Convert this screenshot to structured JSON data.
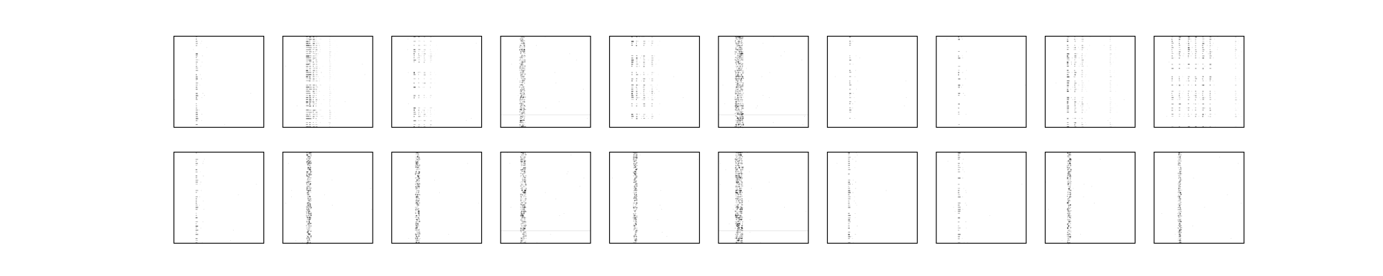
{
  "figure": {
    "background": "#ffffff",
    "grid_rows": 2,
    "grid_cols": 10,
    "frame_color": "#000000",
    "ink_color": "#000000"
  },
  "chart_data": {
    "type": "heatmap",
    "description_of_layout": "",
    "rows": 2,
    "cols": 10,
    "axes_ticks": false,
    "title": "",
    "colormap": "gray_r",
    "panels": [
      {
        "row": 0,
        "col": 0,
        "style": "columns",
        "columns": [
          {
            "pos": 0.25,
            "w": 0.012,
            "int": 0.55
          }
        ],
        "rowDensity": 0.7,
        "noise": 0.02,
        "seed": 11
      },
      {
        "row": 0,
        "col": 1,
        "style": "columns",
        "columns": [
          {
            "pos": 0.27,
            "w": 0.02,
            "int": 0.7
          },
          {
            "pos": 0.3,
            "w": 0.014,
            "int": 0.6
          },
          {
            "pos": 0.34,
            "w": 0.01,
            "int": 0.45
          },
          {
            "pos": 0.37,
            "w": 0.006,
            "int": 0.3
          },
          {
            "pos": 0.52,
            "w": 0.004,
            "int": 0.12
          }
        ],
        "rowDensity": 0.9,
        "noise": 0.03,
        "seed": 12
      },
      {
        "row": 0,
        "col": 2,
        "style": "columns",
        "columns": [
          {
            "pos": 0.25,
            "w": 0.012,
            "int": 0.6
          },
          {
            "pos": 0.3,
            "w": 0.008,
            "int": 0.35
          },
          {
            "pos": 0.36,
            "w": 0.005,
            "int": 0.25
          },
          {
            "pos": 0.43,
            "w": 0.004,
            "int": 0.15
          }
        ],
        "rowDensity": 0.55,
        "noise": 0.02,
        "seed": 13
      },
      {
        "row": 0,
        "col": 3,
        "style": "band",
        "columns": [
          {
            "pos": 0.22,
            "w": 0.06,
            "int": 0.75
          }
        ],
        "rowDensity": 0.2,
        "noise": 0.06,
        "seed": 14
      },
      {
        "row": 0,
        "col": 4,
        "style": "columns",
        "columns": [
          {
            "pos": 0.25,
            "w": 0.012,
            "int": 0.65
          },
          {
            "pos": 0.3,
            "w": 0.008,
            "int": 0.5
          },
          {
            "pos": 0.38,
            "w": 0.006,
            "int": 0.4
          },
          {
            "pos": 0.47,
            "w": 0.005,
            "int": 0.3
          }
        ],
        "rowDensity": 0.6,
        "noise": 0.02,
        "seed": 15
      },
      {
        "row": 0,
        "col": 5,
        "style": "band",
        "columns": [
          {
            "pos": 0.2,
            "w": 0.09,
            "int": 0.8
          }
        ],
        "rowDensity": 0.25,
        "noise": 0.07,
        "seed": 16
      },
      {
        "row": 0,
        "col": 6,
        "style": "columns",
        "columns": [
          {
            "pos": 0.25,
            "w": 0.01,
            "int": 0.55
          }
        ],
        "rowDensity": 0.6,
        "noise": 0.015,
        "seed": 17
      },
      {
        "row": 0,
        "col": 7,
        "style": "columns",
        "columns": [
          {
            "pos": 0.25,
            "w": 0.01,
            "int": 0.55
          }
        ],
        "rowDensity": 0.35,
        "noise": 0.015,
        "seed": 18
      },
      {
        "row": 0,
        "col": 8,
        "style": "columns",
        "columns": [
          {
            "pos": 0.25,
            "w": 0.014,
            "int": 0.7
          },
          {
            "pos": 0.33,
            "w": 0.008,
            "int": 0.45
          },
          {
            "pos": 0.41,
            "w": 0.006,
            "int": 0.3
          },
          {
            "pos": 0.72,
            "w": 0.004,
            "int": 0.15
          }
        ],
        "rowDensity": 0.7,
        "noise": 0.02,
        "seed": 19
      },
      {
        "row": 0,
        "col": 9,
        "style": "columns",
        "columns": [
          {
            "pos": 0.2,
            "w": 0.008,
            "int": 0.45
          },
          {
            "pos": 0.28,
            "w": 0.008,
            "int": 0.45
          },
          {
            "pos": 0.38,
            "w": 0.008,
            "int": 0.55
          },
          {
            "pos": 0.46,
            "w": 0.008,
            "int": 0.5
          },
          {
            "pos": 0.54,
            "w": 0.008,
            "int": 0.55
          },
          {
            "pos": 0.62,
            "w": 0.006,
            "int": 0.4
          },
          {
            "pos": 0.9,
            "w": 0.004,
            "int": 0.15
          }
        ],
        "rowDensity": 0.65,
        "noise": 0.02,
        "seed": 20
      },
      {
        "row": 1,
        "col": 0,
        "style": "columns",
        "columns": [
          {
            "pos": 0.25,
            "w": 0.014,
            "int": 0.55
          }
        ],
        "rowDensity": 0.75,
        "noise": 0.02,
        "seed": 21
      },
      {
        "row": 1,
        "col": 1,
        "style": "band",
        "columns": [
          {
            "pos": 0.27,
            "w": 0.05,
            "int": 0.75
          }
        ],
        "rowDensity": 0.8,
        "noise": 0.05,
        "seed": 22
      },
      {
        "row": 1,
        "col": 2,
        "style": "band",
        "columns": [
          {
            "pos": 0.27,
            "w": 0.045,
            "int": 0.7
          }
        ],
        "rowDensity": 0.8,
        "noise": 0.04,
        "seed": 23
      },
      {
        "row": 1,
        "col": 3,
        "style": "band",
        "columns": [
          {
            "pos": 0.23,
            "w": 0.06,
            "int": 0.75
          }
        ],
        "rowDensity": 0.25,
        "noise": 0.06,
        "seed": 24
      },
      {
        "row": 1,
        "col": 4,
        "style": "band",
        "columns": [
          {
            "pos": 0.27,
            "w": 0.04,
            "int": 0.7
          }
        ],
        "rowDensity": 0.8,
        "noise": 0.04,
        "seed": 25
      },
      {
        "row": 1,
        "col": 5,
        "style": "band",
        "columns": [
          {
            "pos": 0.2,
            "w": 0.08,
            "int": 0.8
          }
        ],
        "rowDensity": 0.25,
        "noise": 0.07,
        "seed": 26
      },
      {
        "row": 1,
        "col": 6,
        "style": "columns",
        "columns": [
          {
            "pos": 0.24,
            "w": 0.014,
            "int": 0.6
          }
        ],
        "rowDensity": 0.75,
        "noise": 0.02,
        "seed": 27
      },
      {
        "row": 1,
        "col": 7,
        "style": "columns",
        "columns": [
          {
            "pos": 0.25,
            "w": 0.014,
            "int": 0.5
          }
        ],
        "rowDensity": 0.7,
        "noise": 0.02,
        "seed": 28
      },
      {
        "row": 1,
        "col": 8,
        "style": "band",
        "columns": [
          {
            "pos": 0.25,
            "w": 0.04,
            "int": 0.7
          }
        ],
        "rowDensity": 0.75,
        "noise": 0.04,
        "seed": 29
      },
      {
        "row": 1,
        "col": 9,
        "style": "band",
        "columns": [
          {
            "pos": 0.27,
            "w": 0.035,
            "int": 0.6
          }
        ],
        "rowDensity": 0.75,
        "noise": 0.03,
        "seed": 30
      }
    ]
  }
}
